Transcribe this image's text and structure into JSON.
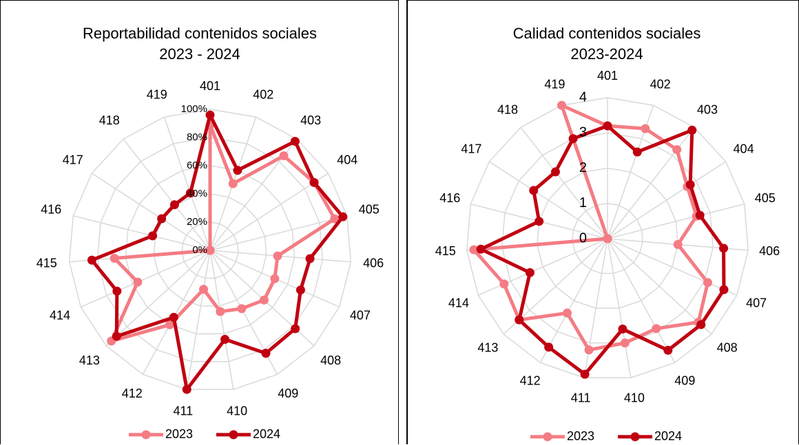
{
  "charts": [
    {
      "title_lines": [
        "Reportabilidad contenidos sociales",
        "2023 - 2024"
      ],
      "tick_labels": [
        "0%",
        "20%",
        "40%",
        "60%",
        "80%",
        "100%"
      ],
      "legend": [
        "2023",
        "2024"
      ]
    },
    {
      "title_lines": [
        "Calidad contenidos sociales",
        "2023-2024"
      ],
      "tick_labels": [
        "0",
        "1",
        "2",
        "3",
        "4"
      ],
      "legend": [
        "2023",
        "2024"
      ]
    }
  ],
  "chart_data": [
    {
      "type": "radar",
      "title": "Reportabilidad contenidos sociales 2023 - 2024",
      "categories": [
        "401",
        "402",
        "403",
        "404",
        "405",
        "406",
        "407",
        "408",
        "409",
        "410",
        "411",
        "412",
        "413",
        "414",
        "415",
        "416",
        "417",
        "418",
        "419"
      ],
      "rlim": [
        0,
        100
      ],
      "ticks": [
        0,
        20,
        40,
        60,
        80,
        100
      ],
      "tick_format": "percent",
      "grid": true,
      "legend_position": "bottom",
      "series": [
        {
          "name": "2023",
          "color": "#f47c84",
          "values": [
            89,
            50,
            85,
            88,
            91,
            48,
            50,
            52,
            47,
            44,
            28,
            60,
            95,
            56,
            68,
            0,
            0,
            0,
            0
          ]
        },
        {
          "name": "2024",
          "color": "#c00010",
          "values": [
            96,
            60,
            98,
            88,
            97,
            71,
            70,
            82,
            83,
            64,
            100,
            54,
            90,
            72,
            84,
            42,
            41,
            41,
            43
          ]
        }
      ]
    },
    {
      "type": "radar",
      "title": "Calidad contenidos sociales 2023-2024",
      "categories": [
        "401",
        "402",
        "403",
        "404",
        "405",
        "406",
        "407",
        "408",
        "409",
        "410",
        "411",
        "412",
        "413",
        "414",
        "415",
        "416",
        "417",
        "418",
        "419"
      ],
      "rlim": [
        0,
        4
      ],
      "ticks": [
        0,
        1,
        2,
        3,
        4
      ],
      "tick_format": "number",
      "grid": true,
      "legend_position": "bottom",
      "series": [
        {
          "name": "2023",
          "color": "#f47c84",
          "values": [
            3.2,
            3.3,
            3.2,
            2.7,
            2.6,
            2.0,
            3.1,
            3.5,
            2.9,
            3.0,
            3.2,
            2.4,
            3.4,
            3.2,
            3.8,
            0,
            0,
            0,
            4.0
          ]
        },
        {
          "name": "2024",
          "color": "#c00010",
          "values": [
            3.2,
            2.6,
            3.9,
            2.8,
            2.7,
            3.3,
            3.6,
            3.6,
            3.6,
            2.6,
            3.9,
            3.5,
            3.4,
            2.4,
            3.6,
            2.0,
            2.5,
            2.4,
            3.0
          ]
        }
      ]
    }
  ]
}
